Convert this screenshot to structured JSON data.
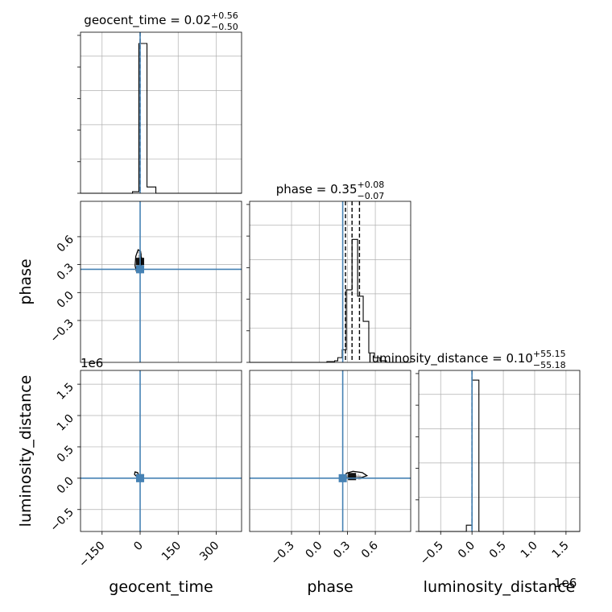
{
  "chart_data": {
    "type": "corner",
    "parameters": [
      "geocent_time",
      "phase",
      "luminosity_distance"
    ],
    "axis_labels": {
      "geocent_time": "geocent_time",
      "phase": "phase",
      "luminosity_distance": "luminosity_distance"
    },
    "offset_text": {
      "luminosity_distance_y": "1e6",
      "luminosity_distance_x": "1e6"
    },
    "ranges": {
      "geocent_time": [
        -235,
        400
      ],
      "phase": [
        -0.75,
        0.98
      ],
      "luminosity_distance": [
        -0.85,
        1.72
      ]
    },
    "ticks": {
      "geocent_time": [
        -150,
        0,
        150,
        300
      ],
      "phase": [
        -0.3,
        0.0,
        0.3,
        0.6
      ],
      "luminosity_distance": [
        -0.5,
        0.0,
        0.5,
        1.0,
        1.5
      ]
    },
    "tick_labels": {
      "geocent_time": [
        "−150",
        "0",
        "150",
        "300"
      ],
      "phase": [
        "−0.3",
        "0.0",
        "0.3",
        "0.6"
      ],
      "luminosity_distance": [
        "−0.5",
        "0.0",
        "0.5",
        "1.0",
        "1.5"
      ]
    },
    "truths": {
      "geocent_time": 0,
      "phase": 0.25,
      "luminosity_distance": 0
    },
    "colors": {
      "truth": "#4682b4",
      "hist": "#000000",
      "grid": "#b0b0b0",
      "scatter": "#9a9a9a"
    },
    "grid": true,
    "diagonal": [
      {
        "param": "geocent_time",
        "title_main": "geocent_time = 0.02",
        "title_sup": "+0.56",
        "title_sub": "−0.50",
        "quantiles": [
          0.02
        ],
        "bin_edges": [
          -235,
          -200,
          -165,
          -130,
          -95,
          -60,
          -30,
          -5,
          27,
          62,
          97,
          132,
          167,
          202,
          237,
          272,
          307,
          342,
          377,
          400
        ],
        "counts": [
          0,
          0,
          0,
          0,
          0,
          0,
          0.01,
          0.95,
          0.04,
          0,
          0,
          0,
          0,
          0,
          0,
          0,
          0,
          0,
          0
        ]
      },
      {
        "param": "phase",
        "title_main": "phase = 0.35",
        "title_sup": "+0.08",
        "title_sub": "−0.07",
        "quantiles": [
          0.28,
          0.35,
          0.43
        ],
        "bin_edges": [
          -0.75,
          -0.667,
          -0.584,
          -0.501,
          -0.418,
          -0.335,
          -0.252,
          -0.169,
          -0.086,
          -0.003,
          0.08,
          0.163,
          0.197,
          0.244,
          0.288,
          0.35,
          0.41,
          0.47,
          0.53,
          0.59,
          0.65,
          0.72,
          0.8,
          0.88,
          0.98
        ],
        "counts": [
          0,
          0,
          0,
          0,
          0,
          0,
          0,
          0,
          0,
          0,
          0.005,
          0.01,
          0.03,
          0.08,
          0.46,
          0.78,
          0.42,
          0.26,
          0.06,
          0.03,
          0.01,
          0,
          0,
          0
        ]
      },
      {
        "param": "luminosity_distance",
        "title_main": "luminosity_distance = 0.10",
        "title_sup": "+55.15",
        "title_sub": "−55.18",
        "quantiles": [
          0.0
        ],
        "bin_edges": [
          -0.85,
          -0.72,
          -0.59,
          -0.46,
          -0.33,
          -0.2,
          -0.09,
          0.0,
          0.11,
          0.24,
          0.37,
          0.5,
          0.63,
          0.76,
          0.89,
          1.02,
          1.15,
          1.28,
          1.41,
          1.54,
          1.72
        ],
        "counts": [
          0,
          0,
          0,
          0,
          0,
          0,
          0.04,
          0.96,
          0,
          0,
          0,
          0,
          0,
          0,
          0,
          0,
          0,
          0,
          0,
          0
        ]
      }
    ],
    "pairs": [
      {
        "x": "geocent_time",
        "y": "phase",
        "center": [
          0,
          0.33
        ],
        "spread": [
          8,
          0.08
        ],
        "contour": [
          [
            -20,
            0.29
          ],
          [
            -14,
            0.22
          ],
          [
            0,
            0.24
          ],
          [
            6,
            0.33
          ],
          [
            2,
            0.44
          ],
          [
            -8,
            0.46
          ],
          [
            -17,
            0.39
          ]
        ]
      },
      {
        "x": "geocent_time",
        "y": "luminosity_distance",
        "center": [
          0,
          0.0
        ],
        "spread": [
          8,
          0.02
        ],
        "contour": [
          [
            -22,
            0.06
          ],
          [
            -12,
            0.02
          ],
          [
            -4,
            0.03
          ],
          [
            -10,
            0.09
          ],
          [
            -20,
            0.1
          ]
        ]
      },
      {
        "x": "phase",
        "y": "luminosity_distance",
        "center": [
          0.35,
          0.02
        ],
        "spread": [
          0.08,
          0.02
        ],
        "contour": [
          [
            0.27,
            0.02
          ],
          [
            0.33,
            -0.01
          ],
          [
            0.45,
            0.01
          ],
          [
            0.51,
            0.04
          ],
          [
            0.46,
            0.09
          ],
          [
            0.36,
            0.11
          ],
          [
            0.29,
            0.08
          ]
        ]
      }
    ]
  }
}
